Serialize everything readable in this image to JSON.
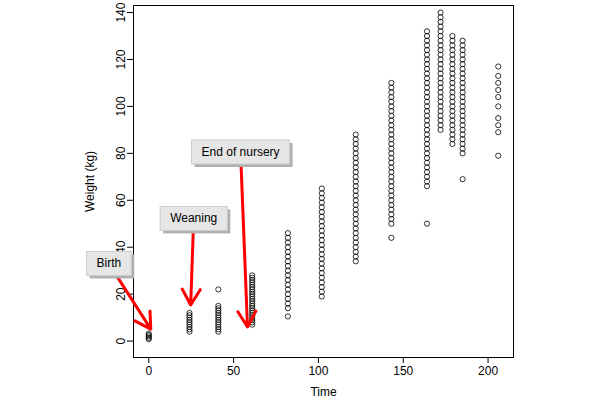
{
  "chart_data": {
    "type": "scatter",
    "x_label": "Time",
    "y_label": "Weight (kg)",
    "color": "#000000",
    "marker": "open_circle",
    "xlim": [
      -9,
      215
    ],
    "ylim": [
      -7,
      143
    ],
    "xticks": [
      0,
      50,
      100,
      150,
      200
    ],
    "yticks": [
      0,
      20,
      40,
      60,
      80,
      100,
      120,
      140
    ],
    "x": [
      0,
      24,
      41,
      61,
      82,
      102,
      122,
      143,
      164,
      172,
      179,
      185,
      206
    ],
    "values": [
      [
        0.8,
        1.4,
        2.0,
        2.6,
        3.2
      ],
      [
        4,
        5,
        6,
        7,
        8,
        9,
        10,
        11,
        12
      ],
      [
        4,
        5,
        6,
        7,
        8,
        9,
        10,
        11,
        12,
        13,
        14,
        15,
        22
      ],
      [
        7,
        8,
        9,
        10,
        11,
        12,
        13,
        14,
        15,
        16,
        17,
        18,
        19,
        20,
        21,
        22,
        23,
        24,
        25,
        26,
        27,
        28
      ],
      [
        10.5,
        14,
        16,
        18,
        20,
        22,
        24,
        26,
        28,
        30,
        32,
        34,
        36,
        38,
        40,
        42,
        44,
        46
      ],
      [
        19,
        21,
        23,
        25,
        27,
        29,
        31,
        33,
        35,
        37,
        39,
        41,
        43,
        45,
        47,
        49,
        51,
        53,
        55,
        57,
        59,
        61,
        63,
        65
      ],
      [
        34,
        36,
        38,
        40,
        42,
        44,
        46,
        48,
        50,
        52,
        54,
        56,
        58,
        60,
        62,
        64,
        66,
        68,
        70,
        72,
        74,
        76,
        78,
        80,
        82,
        84,
        86,
        88
      ],
      [
        44,
        50,
        52,
        54,
        56,
        58,
        60,
        62,
        64,
        66,
        68,
        70,
        72,
        74,
        76,
        78,
        80,
        82,
        84,
        86,
        88,
        90,
        92,
        94,
        96,
        98,
        100,
        102,
        104,
        106,
        108,
        110
      ],
      [
        50,
        66,
        68,
        70,
        72,
        74,
        76,
        78,
        80,
        82,
        84,
        86,
        88,
        90,
        92,
        94,
        96,
        98,
        100,
        102,
        104,
        106,
        108,
        110,
        112,
        114,
        116,
        118,
        120,
        122,
        124,
        126,
        128,
        130,
        132
      ],
      [
        90,
        92,
        94,
        96,
        98,
        100,
        102,
        104,
        106,
        108,
        110,
        112,
        114,
        116,
        118,
        120,
        122,
        124,
        126,
        128,
        130,
        132,
        134,
        136,
        138,
        140
      ],
      [
        84,
        86,
        88,
        90,
        92,
        94,
        96,
        98,
        100,
        102,
        104,
        106,
        108,
        110,
        112,
        114,
        116,
        118,
        120,
        122,
        124,
        126,
        128,
        130
      ],
      [
        69,
        80,
        82,
        84,
        86,
        88,
        90,
        92,
        94,
        96,
        98,
        100,
        102,
        104,
        106,
        108,
        110,
        112,
        114,
        116,
        118,
        120,
        122,
        124,
        126,
        128
      ],
      [
        79,
        89,
        92,
        95,
        100,
        104,
        107,
        110,
        113,
        117
      ]
    ],
    "annotations": [
      {
        "text": "Birth",
        "x": 1.2,
        "y": 5.1,
        "text_x": -23.5,
        "text_y": 33
      },
      {
        "text": "Weaning",
        "x": 24.7,
        "y": 15.4,
        "text_x": 26.5,
        "text_y": 52.2
      },
      {
        "text": "End of nursery",
        "x": 58.2,
        "y": 6,
        "text_x": 54.1,
        "text_y": 80.5
      }
    ]
  }
}
